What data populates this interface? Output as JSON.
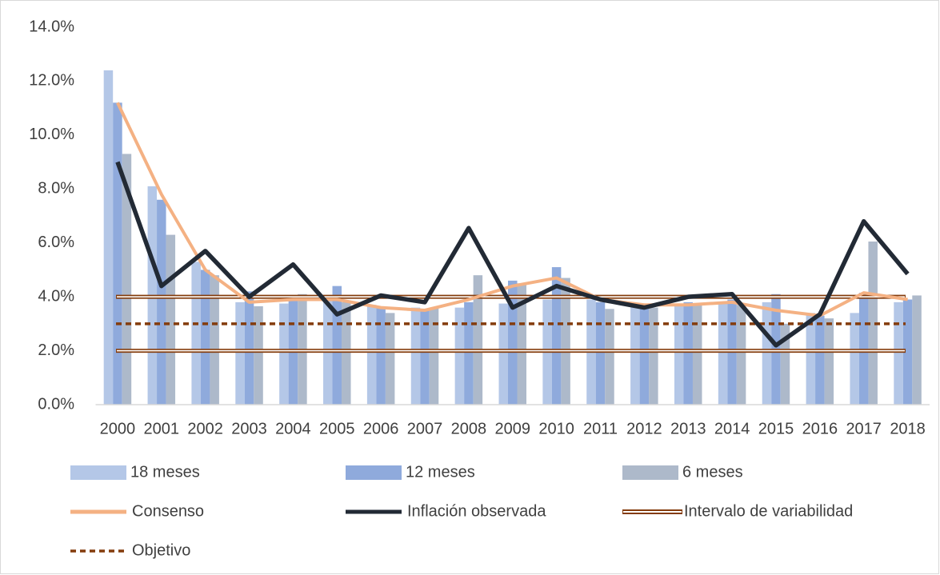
{
  "chart_data": {
    "type": "bar",
    "categories": [
      "2000",
      "2001",
      "2002",
      "2003",
      "2004",
      "2005",
      "2006",
      "2007",
      "2008",
      "2009",
      "2010",
      "2011",
      "2012",
      "2013",
      "2014",
      "2015",
      "2016",
      "2017",
      "2018"
    ],
    "ylim": [
      0,
      14
    ],
    "yticks": [
      {
        "value": 0,
        "label": "0.0%"
      },
      {
        "value": 2,
        "label": "2.0%"
      },
      {
        "value": 4,
        "label": "4.0%"
      },
      {
        "value": 6,
        "label": "6.0%"
      },
      {
        "value": 8,
        "label": "8.0%"
      },
      {
        "value": 10,
        "label": "10.0%"
      },
      {
        "value": 12,
        "label": "12.0%"
      },
      {
        "value": 14,
        "label": "14.0%"
      }
    ],
    "grid": false,
    "series": [
      {
        "name": "18 meses",
        "type": "bar",
        "color": "#b4c7e7",
        "values": [
          12.4,
          8.1,
          5.3,
          3.8,
          3.75,
          3.9,
          3.7,
          3.6,
          3.6,
          3.75,
          3.9,
          3.9,
          3.7,
          3.7,
          3.8,
          3.8,
          3.4,
          3.4,
          3.8
        ]
      },
      {
        "name": "12 meses",
        "type": "bar",
        "color": "#8faadc",
        "values": [
          11.2,
          7.6,
          5.0,
          4.2,
          4.0,
          4.4,
          3.6,
          3.5,
          3.8,
          4.6,
          5.1,
          3.8,
          3.7,
          3.8,
          3.9,
          4.1,
          3.3,
          4.15,
          3.9
        ]
      },
      {
        "name": "6 meses",
        "type": "bar",
        "color": "#adb9ca",
        "values": [
          9.3,
          6.3,
          4.8,
          3.65,
          4.1,
          3.8,
          3.4,
          3.6,
          4.8,
          4.5,
          4.7,
          3.55,
          3.6,
          3.7,
          3.7,
          3.0,
          3.2,
          6.05,
          4.05
        ]
      },
      {
        "name": "Consenso",
        "type": "line",
        "color": "#f4b183",
        "values": [
          11.2,
          7.8,
          5.0,
          3.8,
          3.9,
          3.9,
          3.6,
          3.5,
          3.9,
          4.4,
          4.7,
          3.9,
          3.7,
          3.7,
          3.8,
          3.5,
          3.3,
          4.15,
          3.9
        ]
      },
      {
        "name": "Inflación observada",
        "type": "line",
        "color": "#222a35",
        "values": [
          9.0,
          4.4,
          5.7,
          4.0,
          5.2,
          3.35,
          4.05,
          3.8,
          6.55,
          3.6,
          4.4,
          3.9,
          3.6,
          4.0,
          4.1,
          2.2,
          3.35,
          6.8,
          4.85
        ]
      }
    ],
    "reference_lines": [
      {
        "name": "Intervalo de variabilidad",
        "style": "double",
        "color": "#843c0c",
        "values": [
          2,
          4
        ]
      },
      {
        "name": "Objetivo",
        "style": "dashed",
        "color": "#843c0c",
        "values": [
          3
        ]
      }
    ]
  }
}
